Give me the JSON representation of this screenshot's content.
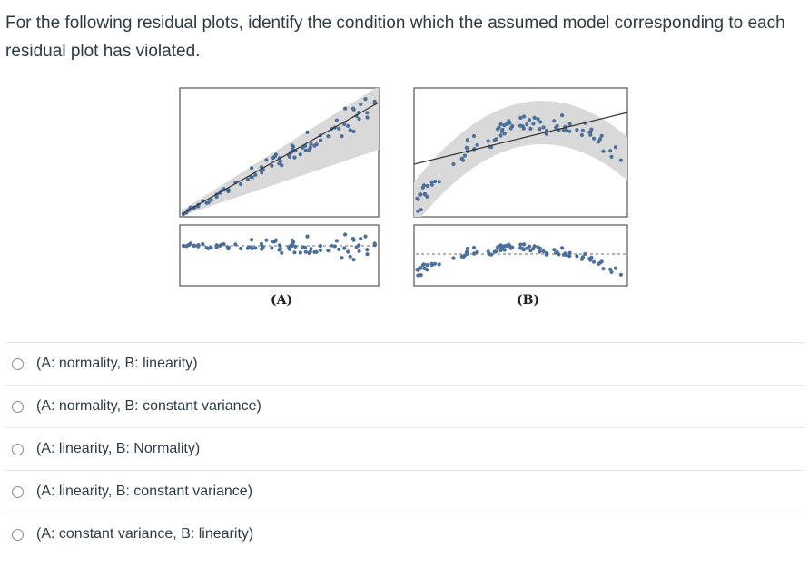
{
  "question": {
    "text": "For the following residual plots, identify the condition which the assumed model corresponding to each residual plot has violated."
  },
  "figure": {
    "panels": [
      {
        "label": "(A)"
      },
      {
        "label": "(B)"
      }
    ],
    "colors": {
      "point": "#4a6f9a",
      "band": "#d9d9d9",
      "fit_line": "#333333",
      "frame": "#555555"
    }
  },
  "answers": [
    {
      "label": "(A: normality, B: linearity)",
      "selected": false
    },
    {
      "label": "(A: normality, B: constant variance)",
      "selected": false
    },
    {
      "label": "(A: linearity, B: Normality)",
      "selected": false
    },
    {
      "label": "(A: linearity, B: constant variance)",
      "selected": false
    },
    {
      "label": "(A: constant variance, B: linearity)",
      "selected": false
    }
  ]
}
